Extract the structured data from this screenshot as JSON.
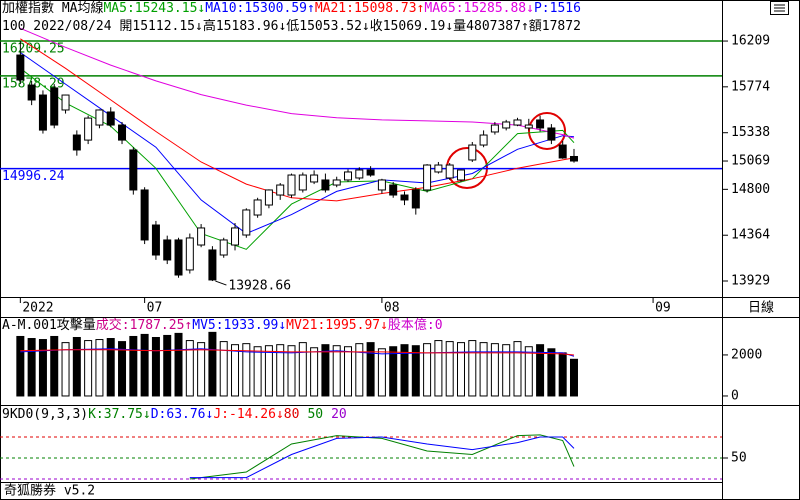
{
  "chart_data": [
    {
      "type": "candlestick",
      "title": "加權指數 MA均線",
      "subtitle": "100 2022/08/24 開15112.15↓高15183.96↓低15053.52↓收15069.19↓量4807387↑額17872",
      "indicator": "P:1516",
      "indicator_color": "#0000ff",
      "open": [
        16076,
        15791,
        15696,
        15763,
        15554,
        15316,
        15268,
        15411,
        15535,
        15411,
        15174,
        14794,
        14461,
        14319,
        14319,
        14034,
        14271,
        14224,
        14176,
        14271,
        14366,
        14556,
        14651,
        14746,
        14746,
        14794,
        14870,
        14889,
        14841,
        14889,
        14908,
        14984,
        14794,
        14841,
        14746,
        14794,
        14794,
        14965,
        14908,
        14889,
        15079,
        15221,
        15345,
        15383,
        15411,
        15383,
        15459,
        15383,
        15221,
        15112.15
      ],
      "high": [
        16209.25,
        15830,
        15740,
        15800,
        15700,
        15360,
        15500,
        15560,
        15580,
        15440,
        15200,
        14820,
        14500,
        14360,
        14340,
        14380,
        14470,
        14260,
        14340,
        14480,
        14620,
        14720,
        14800,
        14860,
        14950,
        14960,
        14980,
        14950,
        14920,
        14990,
        15010,
        15020,
        14900,
        14870,
        14780,
        14820,
        15040,
        15060,
        15050,
        14990,
        15250,
        15360,
        15440,
        15460,
        15480,
        15470,
        15500,
        15420,
        15260,
        15183.96
      ],
      "low": [
        15800,
        15600,
        15330,
        15380,
        15520,
        15120,
        15230,
        15380,
        15390,
        15230,
        14750,
        14280,
        14130,
        14090,
        13960,
        14000,
        14250,
        13928.66,
        14150,
        14220,
        14340,
        14530,
        14620,
        14700,
        14720,
        14770,
        14850,
        14770,
        14820,
        14870,
        14890,
        14920,
        14760,
        14720,
        14650,
        14560,
        14770,
        14950,
        14890,
        14870,
        15060,
        15200,
        15320,
        15360,
        15400,
        15360,
        15350,
        15230,
        15090,
        15053.52
      ],
      "close": [
        15839,
        15649,
        15363,
        15411,
        15696,
        15174,
        15477,
        15554,
        15411,
        15268,
        14794,
        14319,
        14176,
        14129,
        13986,
        14338,
        14433,
        13939,
        14319,
        14433,
        14604,
        14699,
        14794,
        14841,
        14936,
        14936,
        14936,
        14794,
        14889,
        14965,
        14984,
        14936,
        14889,
        14746,
        14699,
        14623,
        15031,
        15031,
        15031,
        14984,
        15221,
        15316,
        15411,
        15440,
        15459,
        15411,
        15383,
        15268,
        15098,
        15069.19
      ],
      "up_color": "#ffffff",
      "down_color": "#000000",
      "xlim": [
        -1.8,
        62.1
      ],
      "xticks": [
        {
          "value": 0,
          "label": "2022"
        },
        {
          "value": 11,
          "label": "07"
        },
        {
          "value": 32,
          "label": "08"
        },
        {
          "value": 56,
          "label": "09"
        }
      ],
      "ylim": [
        13777,
        16428
      ],
      "yticks": [
        13929,
        14364,
        14800,
        15069,
        15338,
        15774,
        16209
      ],
      "series": [
        {
          "name": "MA5:15243.15↓",
          "color": "#00a000",
          "x": [
            0,
            4,
            8,
            12,
            16,
            20,
            24,
            28,
            32,
            36,
            40,
            44,
            48,
            49
          ],
          "values": [
            15950,
            15620,
            15400,
            15000,
            14380,
            14230,
            14660,
            14870,
            14880,
            14780,
            14900,
            15330,
            15360,
            15243.15
          ]
        },
        {
          "name": "MA10:15300.59↑",
          "color": "#0000ff",
          "x": [
            0,
            4,
            8,
            12,
            16,
            20,
            24,
            28,
            32,
            36,
            40,
            44,
            48,
            49
          ],
          "values": [
            16100,
            15800,
            15500,
            15200,
            14700,
            14380,
            14560,
            14780,
            14890,
            14860,
            14950,
            15180,
            15310,
            15300.59
          ]
        },
        {
          "name": "MA21:15098.73↑",
          "color": "#ff0000",
          "x": [
            0,
            4,
            8,
            12,
            16,
            20,
            24,
            28,
            32,
            36,
            40,
            44,
            48,
            49
          ],
          "values": [
            16230,
            15950,
            15650,
            15350,
            15060,
            14850,
            14720,
            14690,
            14760,
            14820,
            14900,
            15000,
            15080,
            15098.73
          ]
        },
        {
          "name": "MA65:15285.88↓",
          "color": "#e000e0",
          "x": [
            0,
            4,
            8,
            12,
            16,
            20,
            24,
            28,
            32,
            36,
            40,
            44,
            48,
            49
          ],
          "values": [
            16330,
            16150,
            15980,
            15830,
            15700,
            15600,
            15520,
            15480,
            15460,
            15450,
            15440,
            15410,
            15320,
            15285.88
          ]
        }
      ],
      "hlines": [
        {
          "value": 16209.25,
          "color": "#008000"
        },
        {
          "value": 15878.29,
          "color": "#008000"
        },
        {
          "value": 14996.24,
          "color": "#0000ff"
        }
      ]
    },
    {
      "type": "bar",
      "title": "A-M.001攻擊量",
      "name": "成交:1787.25↑",
      "name_color": "#cc0088",
      "values": [
        2900,
        2800,
        2750,
        2900,
        2600,
        2850,
        2700,
        2750,
        2800,
        2650,
        2900,
        3000,
        2850,
        2950,
        3050,
        2700,
        2600,
        3100,
        2650,
        2500,
        2550,
        2400,
        2450,
        2500,
        2450,
        2600,
        2350,
        2500,
        2450,
        2400,
        2550,
        2600,
        2300,
        2400,
        2500,
        2450,
        2550,
        2700,
        2650,
        2600,
        2700,
        2600,
        2550,
        2500,
        2650,
        2400,
        2500,
        2300,
        2100,
        1787.25
      ],
      "series": [
        {
          "name": "MV5:1933.99↓",
          "color": "#0000ff",
          "x": [
            0,
            4,
            8,
            12,
            16,
            20,
            24,
            28,
            32,
            36,
            40,
            44,
            48,
            49
          ],
          "values": [
            2150,
            2250,
            2300,
            2200,
            2300,
            2150,
            2100,
            2200,
            2050,
            2100,
            2150,
            2150,
            2100,
            1933.99
          ]
        },
        {
          "name": "MV21:1995.97↓",
          "color": "#ff0000",
          "x": [
            0,
            4,
            8,
            12,
            16,
            20,
            24,
            28,
            32,
            36,
            40,
            44,
            48,
            49
          ],
          "values": [
            2200,
            2250,
            2250,
            2200,
            2250,
            2200,
            2150,
            2150,
            2150,
            2100,
            2100,
            2100,
            2050,
            1995.97
          ]
        }
      ],
      "extra": "股本億:0",
      "extra_color": "#cc00cc",
      "ylim": [
        -440,
        3800
      ],
      "yticks": [
        0,
        2000
      ]
    },
    {
      "type": "line",
      "title": "9KD0(9,3,3)",
      "series": [
        {
          "name": "K:37.75↓",
          "color": "#008000",
          "x": [
            15,
            20,
            24,
            28,
            32,
            36,
            40,
            44,
            46,
            48,
            49
          ],
          "values": [
            20,
            30,
            70,
            82,
            78,
            60,
            55,
            82,
            83,
            75,
            37.75
          ]
        },
        {
          "name": "D:63.76↓",
          "color": "#0000ff",
          "x": [
            15,
            20,
            24,
            28,
            32,
            36,
            40,
            44,
            46,
            48,
            49
          ],
          "values": [
            22,
            22,
            55,
            78,
            80,
            70,
            62,
            72,
            80,
            80,
            63.76
          ]
        }
      ],
      "extra": "J:-14.26↓",
      "extra_color": "#ff0000",
      "levels": [
        {
          "value": 80,
          "color": "#e00000"
        },
        {
          "value": 50,
          "color": "#008000"
        },
        {
          "value": 20,
          "color": "#9900cc"
        }
      ],
      "ylim": [
        15.7,
        121.4
      ],
      "yticks": [
        50
      ]
    }
  ],
  "timeframe": "日線",
  "footer": "奇狐勝券 v5.2"
}
